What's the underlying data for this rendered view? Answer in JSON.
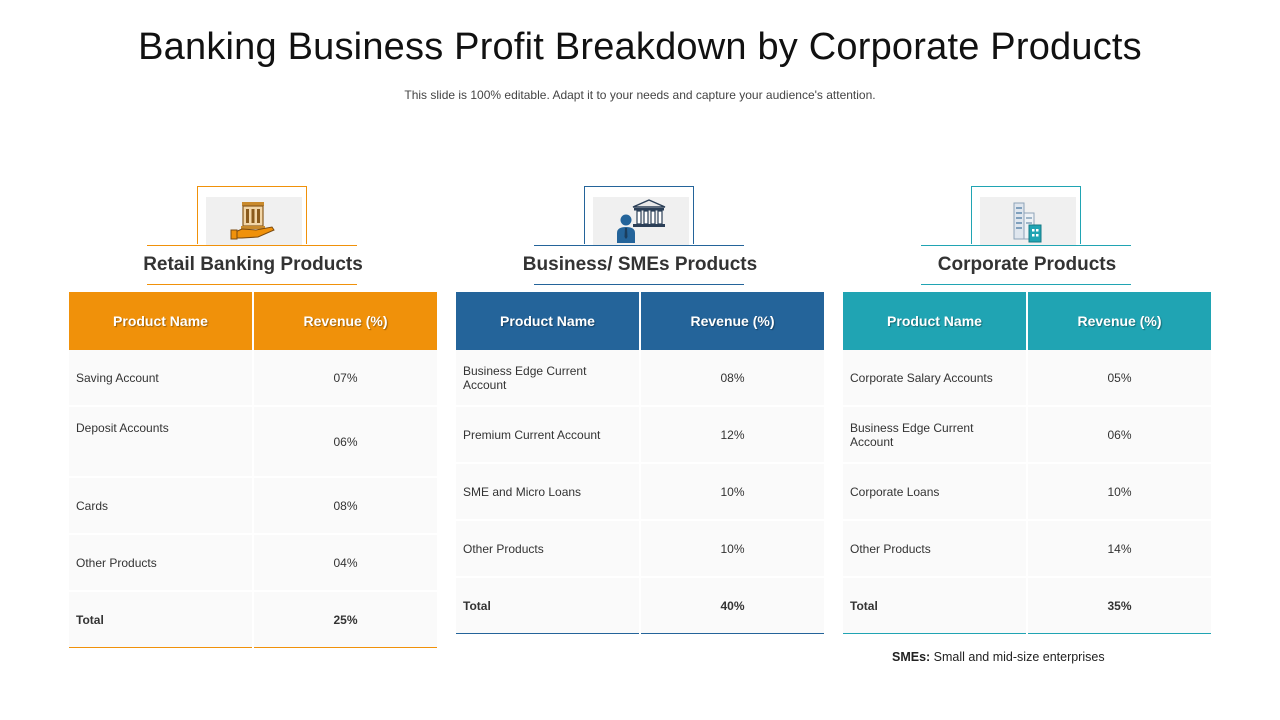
{
  "header": {
    "title": "Banking Business Profit Breakdown by Corporate Products",
    "subtitle": "This slide is 100% editable. Adapt it to your needs and capture your audience's attention."
  },
  "colors": {
    "retail": "#f0910a",
    "smes": "#24649a",
    "corporate": "#20a4b3"
  },
  "panels": [
    {
      "title": "Retail Banking Products",
      "icon": "bank-in-hand-icon",
      "col_name": "Product Name",
      "col_rev": "Revenue (%)",
      "rows": [
        {
          "name": "Saving Account",
          "rev": "07%"
        },
        {
          "name": "Deposit Accounts",
          "rev": "06%"
        },
        {
          "name": "Cards",
          "rev": "08%"
        },
        {
          "name": "Other Products",
          "rev": "04%"
        }
      ],
      "total_label": "Total",
      "total_value": "25%"
    },
    {
      "title": "Business/ SMEs Products",
      "icon": "businessman-bank-icon",
      "col_name": "Product Name",
      "col_rev": "Revenue (%)",
      "rows": [
        {
          "name": "Business Edge Current Account",
          "rev": "08%"
        },
        {
          "name": "Premium Current  Account",
          "rev": "12%"
        },
        {
          "name": "SME and Micro Loans",
          "rev": "10%"
        },
        {
          "name": "Other Products",
          "rev": "10%"
        }
      ],
      "total_label": "Total",
      "total_value": "40%"
    },
    {
      "title": "Corporate Products",
      "icon": "office-buildings-icon",
      "col_name": "Product Name",
      "col_rev": "Revenue (%)",
      "rows": [
        {
          "name": "Corporate  Salary Accounts",
          "rev": "05%"
        },
        {
          "name": "Business Edge Current Account",
          "rev": "06%"
        },
        {
          "name": "Corporate  Loans",
          "rev": "10%"
        },
        {
          "name": "Other Products",
          "rev": "14%"
        }
      ],
      "total_label": "Total",
      "total_value": "35%"
    }
  ],
  "footnote": {
    "label": "SMEs:",
    "text": " Small and mid-size enterprises"
  }
}
